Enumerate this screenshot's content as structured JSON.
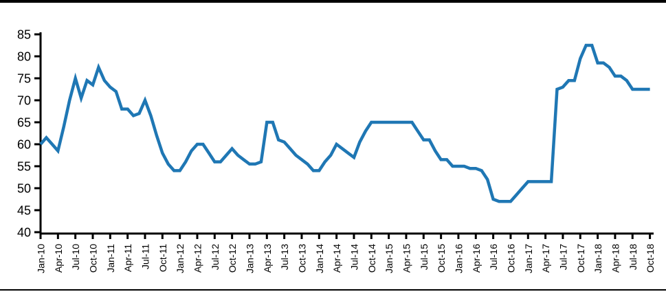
{
  "chart_data": {
    "type": "line",
    "title": "",
    "legend": "none",
    "grid": false,
    "line_color": "#1f77b4",
    "axis_color": "#000000",
    "ylim": [
      40,
      85
    ],
    "y_ticks": [
      40,
      45,
      50,
      55,
      60,
      65,
      70,
      75,
      80,
      85
    ],
    "x_frequency": "monthly",
    "months_per_x_tick": 3,
    "x_start": "Jan-10",
    "x_end": "Oct-18",
    "x_tick_labels": [
      "Jan-10",
      "Apr-10",
      "Jul-10",
      "Oct-10",
      "Jan-11",
      "Apr-11",
      "Jul-11",
      "Oct-11",
      "Jan-12",
      "Apr-12",
      "Jul-12",
      "Oct-12",
      "Jan-13",
      "Apr-13",
      "Jul-13",
      "Oct-13",
      "Jan-14",
      "Apr-14",
      "Jul-14",
      "Oct-14",
      "Jan-15",
      "Apr-15",
      "Jul-15",
      "Oct-15",
      "Jan-16",
      "Apr-16",
      "Jul-16",
      "Oct-16",
      "Jan-17",
      "Apr-17",
      "Jul-17",
      "Oct-17",
      "Jan-18",
      "Apr-18",
      "Jul-18",
      "Oct-18"
    ],
    "values": [
      60,
      61.5,
      60,
      58.5,
      64,
      70,
      75,
      70.5,
      74.5,
      73.5,
      77.5,
      74.5,
      73,
      72,
      68,
      68,
      66.5,
      67,
      70,
      66.5,
      62,
      58,
      55.5,
      54,
      54,
      56,
      58.5,
      60,
      60,
      58,
      56,
      56,
      57.5,
      59,
      57.5,
      56.5,
      55.5,
      55.5,
      56,
      65,
      65,
      61,
      60.5,
      59,
      57.5,
      56.5,
      55.5,
      54,
      54,
      56,
      57.5,
      60,
      59,
      58,
      57,
      60.5,
      63,
      65,
      65,
      65,
      65,
      65,
      65,
      65,
      65,
      63,
      61,
      61,
      58.5,
      56.5,
      56.5,
      55,
      55,
      55,
      54.5,
      54.5,
      54,
      52,
      47.5,
      47,
      47,
      47,
      48.5,
      50,
      51.5,
      51.5,
      51.5,
      51.5,
      51.5,
      72.5,
      73,
      74.5,
      74.5,
      79.5,
      82.5,
      82.5,
      78.5,
      78.5,
      77.5,
      75.5,
      75.5,
      74.5,
      72.5,
      72.5,
      72.5,
      72.5
    ]
  }
}
